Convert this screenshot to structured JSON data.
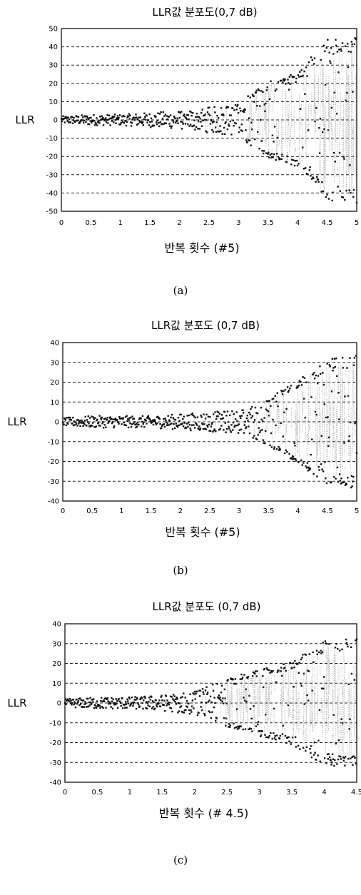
{
  "chart_data": [
    {
      "type": "scatter",
      "title": "LLR값 분포도(0,7 dB)",
      "xlabel": "반복 횟수 (#5)",
      "ylabel": "LLR",
      "caption": "(a)",
      "xlim": [
        0,
        5
      ],
      "ylim": [
        -50,
        50
      ],
      "x_ticks": [
        "0",
        "0.5",
        "1",
        "1.5",
        "2",
        "2.5",
        "3",
        "3.5",
        "4",
        "4.5",
        "5"
      ],
      "y_ticks": [
        "50",
        "40",
        "30",
        "20",
        "10",
        "0",
        "-10",
        "-20",
        "-30",
        "-40",
        "-50"
      ],
      "gridlines_y": [
        40,
        30,
        20,
        10,
        0,
        -10,
        -20,
        -30,
        -40
      ],
      "grid": "horizontal dashed",
      "spread_profile": {
        "x": [
          0,
          0.5,
          1,
          1.5,
          2,
          2.5,
          3,
          3.5,
          4,
          4.5,
          5
        ],
        "magnitude": [
          2,
          3,
          3,
          4,
          5,
          7,
          9,
          20,
          25,
          42,
          44
        ]
      }
    },
    {
      "type": "scatter",
      "title": "LLR값 분포도 (0,7 dB)",
      "xlabel": "반복 횟수 (#5)",
      "ylabel": "LLR",
      "caption": "(b)",
      "xlim": [
        0,
        5
      ],
      "ylim": [
        -40,
        40
      ],
      "x_ticks": [
        "0",
        "0.5",
        "1",
        "1.5",
        "2",
        "2.5",
        "3",
        "3.5",
        "4",
        "4.5",
        "5"
      ],
      "y_ticks": [
        "40",
        "30",
        "20",
        "10",
        "0",
        "-10",
        "-20",
        "-30",
        "-40"
      ],
      "gridlines_y": [
        30,
        20,
        10,
        0,
        -10,
        -20,
        -30
      ],
      "grid": "horizontal dashed",
      "spread_profile": {
        "x": [
          0,
          0.5,
          1,
          1.5,
          2,
          2.5,
          3,
          3.5,
          4,
          4.5,
          5
        ],
        "magnitude": [
          2,
          3,
          3,
          3,
          4,
          5,
          6,
          12,
          20,
          30,
          32
        ]
      }
    },
    {
      "type": "scatter",
      "title": "LLR값 분포도 (0,7 dB)",
      "xlabel": "반복 횟수 (# 4.5)",
      "ylabel": "LLR",
      "caption": "(c)",
      "xlim": [
        0,
        4.5
      ],
      "ylim": [
        -40,
        40
      ],
      "x_ticks": [
        "0",
        "0.5",
        "1",
        "1.5",
        "2",
        "2.5",
        "3",
        "3.5",
        "4",
        "4.5"
      ],
      "y_ticks": [
        "40",
        "30",
        "20",
        "10",
        "0",
        "-10",
        "-20",
        "-30",
        "-40"
      ],
      "gridlines_y": [
        30,
        20,
        10,
        0,
        -10,
        -20,
        -30
      ],
      "grid": "horizontal dashed",
      "spread_profile": {
        "x": [
          0,
          0.5,
          1,
          1.5,
          2,
          2.5,
          3,
          3.5,
          4,
          4.5
        ],
        "magnitude": [
          2,
          3,
          3,
          4,
          6,
          12,
          16,
          20,
          30,
          31
        ]
      }
    }
  ]
}
